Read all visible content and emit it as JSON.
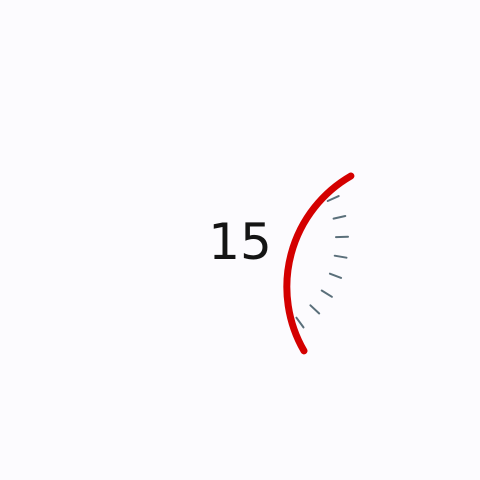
{
  "gauge": {
    "value_label": "15",
    "level_fraction": 0.25,
    "tick_count": 8,
    "arc_color": "#d40000",
    "tick_color": "#5a6f7a",
    "background_color": "#fcfbfe",
    "text_color": "#141414"
  }
}
